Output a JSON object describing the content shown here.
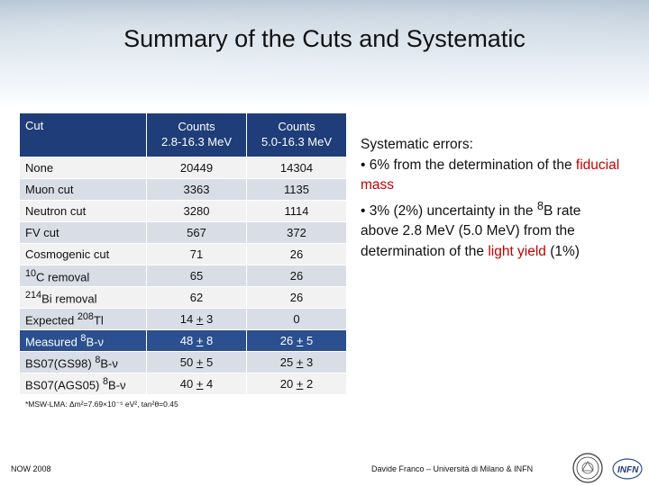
{
  "title": "Summary of the Cuts and Systematic",
  "table": {
    "headers": [
      "Cut",
      "Counts",
      "2.8-16.3 MeV",
      "Counts",
      "5.0-16.3 MeV"
    ],
    "rows": [
      {
        "cut": "None",
        "c1": "20449",
        "c2": "14304"
      },
      {
        "cut": "Muon cut",
        "c1": "3363",
        "c2": "1135"
      },
      {
        "cut": "Neutron cut",
        "c1": "3280",
        "c2": "1114"
      },
      {
        "cut": "FV cut",
        "c1": "567",
        "c2": "372"
      },
      {
        "cut": "Cosmogenic cut",
        "c1": "71",
        "c2": "26"
      },
      {
        "sup": "10",
        "cut": "C removal",
        "c1": "65",
        "c2": "26"
      },
      {
        "sup": "214",
        "cut": "Bi removal",
        "c1": "62",
        "c2": "26"
      },
      {
        "cut_pre": "Expected ",
        "sup": "208",
        "cut": "Tl",
        "c1_val": "14",
        "c1_pm": "+",
        "c1_err": " 3",
        "c2": "0"
      },
      {
        "cut_pre": "Measured ",
        "sup": "8",
        "cut": "B-ν",
        "c1_val": "48 ",
        "c1_pm": "+",
        "c1_err": " 8",
        "c2_val": "26 ",
        "c2_pm": "+",
        "c2_err": " 5"
      },
      {
        "cut_pre": "BS07(GS98) ",
        "sup": "8",
        "cut": "B-ν",
        "c1_val": "50 ",
        "c1_pm": "+",
        "c1_err": " 5",
        "c2_val": "25 ",
        "c2_pm": "+",
        "c2_err": " 3"
      },
      {
        "cut_pre": "BS07(AGS05) ",
        "sup": "8",
        "cut": "B-ν",
        "c1_val": "40 ",
        "c1_pm": "+",
        "c1_err": " 4",
        "c2_val": "20 ",
        "c2_pm": "+",
        "c2_err": " 2"
      }
    ]
  },
  "footnote": "*MSW-LMA: Δm²=7.69×10⁻⁵ eV², tan²θ=0.45",
  "systematic": {
    "heading": "Systematic errors:",
    "line1a": "• 6% from the determination of the ",
    "line1b": "fiducial mass",
    "line2a": "• 3% (2%) uncertainty in the ",
    "line2sup": "8",
    "line2b": "B rate above 2.8 MeV (5.0 MeV) from the determination of the ",
    "line2c": "light yield",
    "line2d": " (1%)"
  },
  "footer": {
    "left": "NOW 2008",
    "right": "Davide Franco – Università di Milano & INFN"
  },
  "logos": {
    "infn_text": "INFN"
  },
  "colors": {
    "header_bg": "#1f3d79",
    "highlight_row": "#2b4f8f",
    "accent_red": "#c00000"
  }
}
